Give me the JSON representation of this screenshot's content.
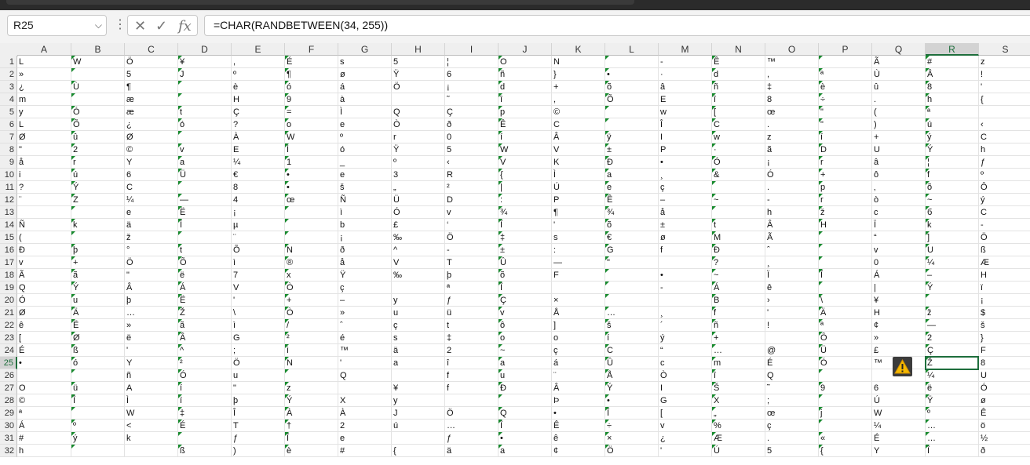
{
  "name_box": "R25",
  "formula": "=CHAR(RANDBETWEEN(34, 255))",
  "icons": {
    "cancel": "close-icon",
    "enter": "check-icon",
    "fx": "fx-icon",
    "warning": "warning-icon"
  },
  "columns": [
    "A",
    "B",
    "C",
    "D",
    "E",
    "F",
    "G",
    "H",
    "I",
    "J",
    "K",
    "L",
    "M",
    "N",
    "O",
    "P",
    "Q",
    "R",
    "S"
  ],
  "selected_column": "R",
  "selected_row": "25",
  "rows": [
    {
      "n": "1",
      "c": [
        "L",
        "W",
        "Ö",
        "¥",
        ",",
        "É",
        "s",
        "5",
        "¦",
        "O",
        "N",
        "",
        "-",
        "Ê",
        "™",
        "",
        "Ã",
        "#",
        "z"
      ]
    },
    {
      "n": "2",
      "c": [
        "»",
        "",
        "5",
        "J",
        "º",
        "¶",
        "ø",
        "Ÿ",
        "6",
        "ñ",
        "}",
        "•",
        "·",
        "d",
        ",",
        "ª",
        "Ù",
        "Â",
        "!"
      ]
    },
    {
      "n": "3",
      "c": [
        "¿",
        "Ù",
        "¶",
        "",
        "è",
        "ó",
        "á",
        "Ö",
        "¡",
        "d",
        "+",
        "õ",
        "â",
        "ñ",
        "‡",
        "è",
        "û",
        "8",
        "'"
      ]
    },
    {
      "n": "4",
      "c": [
        "m",
        "",
        "æ",
        "",
        "H",
        "9",
        "à",
        "",
        "˜",
        "î",
        ",",
        "Õ",
        "E",
        "î",
        "8",
        "÷",
        ".",
        "h",
        "{"
      ]
    },
    {
      "n": "5",
      "c": [
        "y",
        "Ó",
        "æ",
        "t",
        "Ç",
        "=",
        "Ì",
        "Q",
        "Ç",
        "p",
        "©",
        "",
        "w",
        "[",
        "œ",
        "\"",
        "(",
        "ª",
        ""
      ]
    },
    {
      "n": "6",
      "c": [
        "L",
        "Õ",
        "¿",
        "ó",
        "?",
        "o",
        "e",
        "Ò",
        "ð",
        "Ê",
        "C",
        "",
        "Î",
        "C",
        ".",
        "\"",
        ")",
        "ú",
        "‹"
      ]
    },
    {
      "n": "7",
      "c": [
        "Ø",
        "û",
        "Ø",
        "",
        "À",
        "W",
        "º",
        "r",
        "0",
        "í",
        "Â",
        "ÿ",
        "I",
        "w",
        "z",
        "í",
        "+",
        "ý",
        "C"
      ]
    },
    {
      "n": "8",
      "c": [
        "\"",
        "2",
        "©",
        "v",
        "E",
        "Ì",
        "ó",
        "Ÿ",
        "5",
        "W",
        "V",
        "±",
        "P",
        "·",
        "ã",
        "D",
        "U",
        "Ý",
        "h"
      ]
    },
    {
      "n": "9",
      "c": [
        "å",
        "r",
        "Y",
        "a",
        "¼",
        "1",
        "_",
        "º",
        "‹",
        "V",
        "K",
        "Ð",
        "•",
        "Ó",
        "¡",
        "r",
        "â",
        "¦",
        "ƒ"
      ]
    },
    {
      "n": "10",
      "c": [
        "i",
        "ú",
        "6",
        "Ü",
        "€",
        "•",
        "e",
        "3",
        "R",
        "{",
        "Ì",
        "a",
        "¸",
        "&",
        "Ó",
        "+",
        "ô",
        "f",
        "º"
      ]
    },
    {
      "n": "11",
      "c": [
        "?",
        "Ý",
        "C",
        "",
        "8",
        "•",
        "š",
        "„",
        "²",
        "|",
        "Ú",
        "e",
        "ç",
        "",
        ".",
        "p",
        "‚",
        "õ",
        "Ô"
      ]
    },
    {
      "n": "12",
      "c": [
        "¨",
        "Z",
        "¼",
        "—",
        "4",
        "œ",
        "Ñ",
        "Ü",
        "D",
        ":",
        "P",
        "Ê",
        "–",
        "~",
        "-",
        "r",
        "ò",
        "~",
        "ý"
      ]
    },
    {
      "n": "13",
      "c": [
        "",
        "",
        "e",
        "Ë",
        "¡",
        "",
        "ì",
        "Ó",
        "v",
        "¾",
        "¶",
        "¾",
        "å",
        "",
        "h",
        "ž",
        "c",
        "б",
        "C"
      ]
    },
    {
      "n": "14",
      "c": [
        "Ñ",
        "k",
        "ä",
        "Í",
        "µ",
        "",
        "b",
        "£",
        "‘",
        "Î",
        "'",
        "õ",
        "±",
        "t",
        "Â",
        "H",
        "Ï",
        "k",
        "-"
      ]
    },
    {
      "n": "15",
      "c": [
        "(",
        "",
        "ž",
        "",
        "¨",
        "",
        "¡",
        "‰",
        "Ö",
        "‡",
        "s",
        "€",
        "ø",
        "M",
        "Ã",
        "",
        "“",
        "]",
        "Ö"
      ]
    },
    {
      "n": "16",
      "c": [
        "Ð",
        "þ",
        "°",
        "t",
        "Õ",
        "N",
        "ð",
        "^",
        "-",
        "±",
        ":",
        "G",
        "f",
        "Ð",
        "ˆ",
        "",
        "v",
        "U",
        "ß"
      ]
    },
    {
      "n": "17",
      "c": [
        "v",
        "+",
        "Ö",
        "Õ",
        "ì",
        "®",
        "å",
        "V",
        "T",
        "Û",
        "—",
        "\"",
        "",
        "?",
        "¸",
        "",
        "0",
        "¼",
        "Æ"
      ]
    },
    {
      "n": "18",
      "c": [
        "Ã",
        "ã",
        "\"",
        "ë",
        "7",
        "x",
        "Ÿ",
        "‰",
        "þ",
        "õ",
        "F",
        "",
        "•",
        "~",
        "Ï",
        "Î",
        "Á",
        "–",
        "H"
      ]
    },
    {
      "n": "19",
      "c": [
        "Q",
        "Ý",
        "Â",
        "Á",
        "V",
        "Ò",
        "ç",
        "",
        "ª",
        "Î",
        "",
        "",
        "-",
        "Á",
        "ê",
        "",
        "|",
        "Ý",
        "ï"
      ]
    },
    {
      "n": "20",
      "c": [
        "Ó",
        "u",
        "þ",
        "Ë",
        "'",
        "+",
        "–",
        "y",
        "ƒ",
        "Ç",
        "×",
        "",
        "",
        "B",
        "›",
        "\\",
        "¥",
        "",
        "¡"
      ]
    },
    {
      "n": "21",
      "c": [
        "Ø",
        "Ä",
        "…",
        "Ž",
        "\\",
        "Ò",
        "»",
        "u",
        "ü",
        "v",
        "Å",
        "…",
        "¸",
        "f",
        "'",
        "Ä",
        "H",
        "ž",
        "$"
      ]
    },
    {
      "n": "22",
      "c": [
        "ê",
        "Ë",
        "»",
        "ã",
        "ì",
        "/",
        "ˆ",
        "ç",
        "t",
        "ô",
        "]",
        "š",
        "´",
        "ñ",
        "!",
        "ª",
        "¢",
        "—",
        "š"
      ]
    },
    {
      "n": "23",
      "c": [
        "[",
        "Ø",
        "ë",
        "Â",
        "G",
        "²",
        "é",
        "s",
        "‡",
        "o",
        "o",
        "í",
        "ý",
        "+",
        "",
        "Ô",
        "»",
        "2",
        "}"
      ]
    },
    {
      "n": "24",
      "c": [
        "É",
        "ß",
        "'",
        "^",
        ";",
        "ì",
        "™",
        "ä",
        "2",
        "~",
        "ç",
        "C",
        "“",
        "…",
        "@",
        "Ü",
        "£",
        "Ç",
        "F"
      ]
    },
    {
      "n": "25",
      "c": [
        "•",
        "ó",
        "Y",
        "²",
        "Ö",
        "N",
        "'",
        "a",
        "î",
        "a",
        "á",
        "Û",
        "c",
        "m",
        "É",
        "Ó",
        "™",
        "Ž",
        "8"
      ]
    },
    {
      "n": "26",
      "c": [
        "",
        "",
        "ñ",
        "Ó",
        "u",
        "",
        "Q",
        "",
        "f",
        "u",
        "¨",
        "Å",
        "Ò",
        "î",
        "Q",
        "",
        "",
        "¼",
        "U"
      ]
    },
    {
      "n": "27",
      "c": [
        "O",
        "ü",
        "A",
        "í",
        "\"",
        "z",
        "",
        "¥",
        "f",
        "Ð",
        "Â",
        "Ý",
        "I",
        "Š",
        "˜",
        "9",
        "6",
        "ë",
        "Ó"
      ]
    },
    {
      "n": "28",
      "c": [
        "©",
        "Î",
        "Ì",
        "í",
        "þ",
        "Ý",
        "X",
        "y",
        "",
        "",
        "Þ",
        "•",
        "G",
        "X",
        ";",
        "",
        "Ú",
        "Ÿ",
        "ø"
      ]
    },
    {
      "n": "29",
      "c": [
        "ª",
        "",
        "W",
        "‡",
        "Î",
        "À",
        "À",
        "J",
        "Ö",
        "Q",
        "•",
        "Î",
        "[",
        "„",
        "œ",
        "j",
        "W",
        "º",
        "Ê"
      ]
    },
    {
      "n": "30",
      "c": [
        "Á",
        "º",
        "<",
        "É",
        "T",
        "†",
        "2",
        "ú",
        "…",
        "Î",
        "Ê",
        "÷",
        "v",
        "%",
        "ç",
        "",
        "¼",
        "…",
        "ö"
      ]
    },
    {
      "n": "31",
      "c": [
        "#",
        "ý",
        "k",
        "",
        "ƒ",
        "Î",
        "e",
        "",
        "ƒ",
        "•",
        "ê",
        "×",
        "¿",
        "Æ",
        ".",
        "«",
        "É",
        "…",
        "½"
      ]
    },
    {
      "n": "32",
      "c": [
        "h",
        "",
        "",
        "ß",
        ")",
        "è",
        "#",
        "{",
        "ä",
        "a",
        "¢",
        "Ö",
        "'",
        "Ú",
        "5",
        "{",
        "Y",
        "Î",
        "ð"
      ]
    }
  ]
}
